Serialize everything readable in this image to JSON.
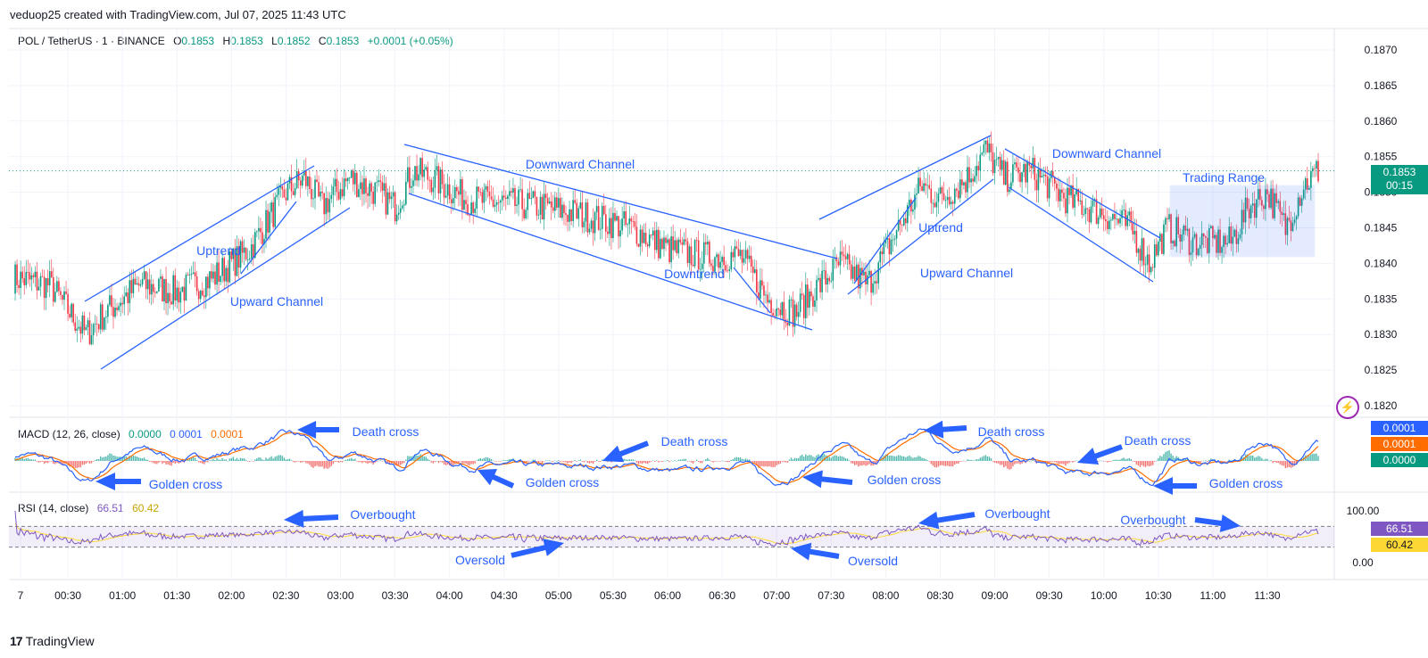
{
  "caption": "veduop25 created with TradingView.com, Jul 07, 2025 11:43 UTC",
  "brand": "TradingView",
  "main_legend": {
    "symbol": "POL / TetherUS · 1 · BINANCE",
    "o_label": "O",
    "o_value": "0.1853",
    "h_label": "H",
    "h_value": "0.1853",
    "l_label": "L",
    "l_value": "0.1852",
    "c_label": "C",
    "c_value": "0.1853",
    "change": "+0.0001 (+0.05%)"
  },
  "macd_legend": {
    "label": "MACD (12, 26, close)",
    "hist": "0.0000",
    "macd": "0.0001",
    "signal": "0.0001"
  },
  "rsi_legend": {
    "label": "RSI (14, close)",
    "rsi": "66.51",
    "ma": "60.42"
  },
  "price_tags": {
    "last": "0.1853",
    "countdown": "00:15",
    "macd": "0.0001",
    "signal": "0.0001",
    "hist": "0.0000",
    "rsi": "66.51",
    "rsi_ma": "60.42"
  },
  "colors": {
    "up": "#089981",
    "down": "#f23645",
    "drawing": "#2962ff",
    "macd_line": "#2962ff",
    "signal_line": "#ff6d00",
    "rsi_line": "#7e57c2",
    "rsi_ma": "#fdd835",
    "rsi_band": "#7e57c2"
  },
  "chart_data": [
    {
      "type": "candlestick",
      "title": "POL / TetherUS · 1 · BINANCE",
      "ylim": [
        0.1816,
        0.1874
      ],
      "y_ticks": [
        "0.1870",
        "0.1865",
        "0.1860",
        "0.1855",
        "0.1850",
        "0.1845",
        "0.1840",
        "0.1835",
        "0.1830",
        "0.1825",
        "0.1820"
      ],
      "x_ticks": [
        "7",
        "00:30",
        "01:00",
        "01:30",
        "02:00",
        "02:30",
        "03:00",
        "03:30",
        "04:00",
        "04:30",
        "05:00",
        "05:30",
        "06:00",
        "06:30",
        "07:00",
        "07:30",
        "08:00",
        "08:30",
        "09:00",
        "09:30",
        "10:00",
        "10:30",
        "11:00",
        "11:30"
      ],
      "x_range_minutes": [
        0,
        718
      ],
      "last_price": 0.1853,
      "path_anchors": [
        {
          "t": 0,
          "p": 0.1838
        },
        {
          "t": 20,
          "p": 0.1837
        },
        {
          "t": 40,
          "p": 0.183
        },
        {
          "t": 50,
          "p": 0.1833
        },
        {
          "t": 70,
          "p": 0.1837
        },
        {
          "t": 90,
          "p": 0.1836
        },
        {
          "t": 110,
          "p": 0.1838
        },
        {
          "t": 130,
          "p": 0.1842
        },
        {
          "t": 150,
          "p": 0.185
        },
        {
          "t": 160,
          "p": 0.1852
        },
        {
          "t": 170,
          "p": 0.1848
        },
        {
          "t": 185,
          "p": 0.1852
        },
        {
          "t": 200,
          "p": 0.185
        },
        {
          "t": 210,
          "p": 0.1848
        },
        {
          "t": 220,
          "p": 0.1853
        },
        {
          "t": 230,
          "p": 0.1852
        },
        {
          "t": 250,
          "p": 0.1849
        },
        {
          "t": 290,
          "p": 0.1848
        },
        {
          "t": 310,
          "p": 0.1847
        },
        {
          "t": 340,
          "p": 0.1845
        },
        {
          "t": 360,
          "p": 0.1842
        },
        {
          "t": 380,
          "p": 0.1841
        },
        {
          "t": 400,
          "p": 0.1841
        },
        {
          "t": 415,
          "p": 0.1835
        },
        {
          "t": 430,
          "p": 0.1833
        },
        {
          "t": 440,
          "p": 0.1836
        },
        {
          "t": 455,
          "p": 0.184
        },
        {
          "t": 470,
          "p": 0.1837
        },
        {
          "t": 485,
          "p": 0.1844
        },
        {
          "t": 500,
          "p": 0.1851
        },
        {
          "t": 510,
          "p": 0.1849
        },
        {
          "t": 525,
          "p": 0.1852
        },
        {
          "t": 535,
          "p": 0.1856
        },
        {
          "t": 545,
          "p": 0.1852
        },
        {
          "t": 560,
          "p": 0.1853
        },
        {
          "t": 580,
          "p": 0.1849
        },
        {
          "t": 600,
          "p": 0.1847
        },
        {
          "t": 615,
          "p": 0.1845
        },
        {
          "t": 625,
          "p": 0.184
        },
        {
          "t": 635,
          "p": 0.1845
        },
        {
          "t": 650,
          "p": 0.1843
        },
        {
          "t": 670,
          "p": 0.1843
        },
        {
          "t": 680,
          "p": 0.1848
        },
        {
          "t": 690,
          "p": 0.185
        },
        {
          "t": 700,
          "p": 0.1845
        },
        {
          "t": 710,
          "p": 0.1851
        },
        {
          "t": 718,
          "p": 0.1853
        }
      ],
      "annotations": [
        "Uptrend",
        "Upward Channel",
        "Downward Channel",
        "Downtrend",
        "Uptrend",
        "Upward Channel",
        "Downward Channel",
        "Trading Range"
      ]
    },
    {
      "type": "line",
      "title": "MACD (12, 26, close)",
      "series": [
        {
          "name": "MACD",
          "last": 0.0001
        },
        {
          "name": "Signal",
          "last": 0.0001
        },
        {
          "name": "Histogram",
          "last": 0.0
        }
      ],
      "annotations": [
        "Death cross",
        "Golden cross",
        "Death cross",
        "Golden cross",
        "Death cross",
        "Golden cross",
        "Death cross",
        "Golden cross"
      ]
    },
    {
      "type": "line",
      "title": "RSI (14, close)",
      "ylim": [
        0,
        100
      ],
      "y_ticks": [
        "100.00",
        "0.00"
      ],
      "band": [
        30,
        70
      ],
      "series": [
        {
          "name": "RSI",
          "last": 66.51
        },
        {
          "name": "RSI MA",
          "last": 60.42
        }
      ],
      "annotations": [
        "Overbought",
        "Oversold",
        "Overbought",
        "Oversold",
        "Overbought"
      ]
    }
  ],
  "annotation_text": {
    "uptrend": "Uptrend",
    "upward_channel": "Upward Channel",
    "downward_channel": "Downward Channel",
    "downtrend": "Downtrend",
    "trading_range": "Trading Range",
    "death_cross": "Death cross",
    "golden_cross": "Golden cross",
    "overbought": "Overbought",
    "oversold": "Oversold"
  }
}
